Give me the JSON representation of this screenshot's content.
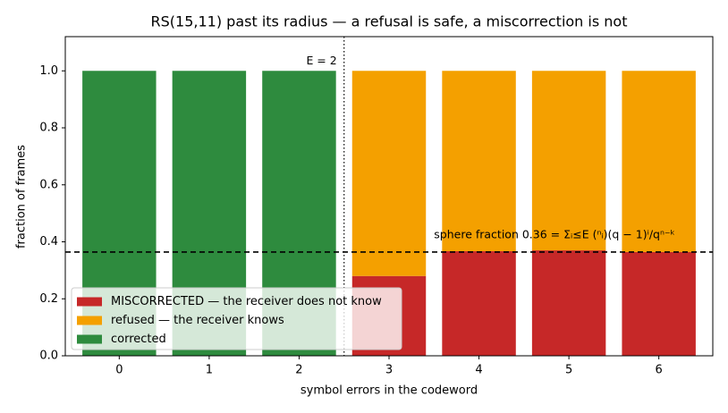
{
  "chart_data": {
    "type": "stacked_bar",
    "title": "RS(15,11) past its radius — a refusal is safe, a miscorrection is not",
    "x_label": "symbol errors in the codeword",
    "y_label": "fraction of frames",
    "x": [
      0,
      1,
      2,
      3,
      4,
      5,
      6
    ],
    "xlim": [
      -0.6,
      6.6
    ],
    "xticks": [
      0,
      1,
      2,
      3,
      4,
      5,
      6
    ],
    "ylim": [
      0,
      1.12
    ],
    "yticks": [
      {
        "value": 0,
        "label": "0.0"
      },
      {
        "value": 0.2,
        "label": "0.2"
      },
      {
        "value": 0.4,
        "label": "0.4"
      },
      {
        "value": 0.6,
        "label": "0.6"
      },
      {
        "value": 0.8,
        "label": "0.8"
      },
      {
        "value": 1.0,
        "label": "1.0"
      }
    ],
    "series": [
      {
        "name": "MISCORRECTED — the receiver does not know",
        "color": "#c62828",
        "values": [
          0,
          0,
          0,
          0.28,
          0.367,
          0.37,
          0.364
        ]
      },
      {
        "name": "refused — the receiver knows",
        "color": "#f4a000",
        "values": [
          0,
          0,
          0,
          0.72,
          0.633,
          0.63,
          0.636
        ]
      },
      {
        "name": "corrected",
        "color": "#2e8b3e",
        "values": [
          1,
          1,
          1,
          0,
          0,
          0,
          0
        ]
      }
    ],
    "reference_line": {
      "value": 0.364,
      "label": "sphere fraction 0.36 = Σᵢ≤E (ⁿᵢ)(q − 1)ⁱ/qⁿ⁻ᵏ"
    },
    "radius_line": {
      "x": 2.5,
      "label": "E = 2"
    },
    "legend": "lower left",
    "grid": false
  }
}
